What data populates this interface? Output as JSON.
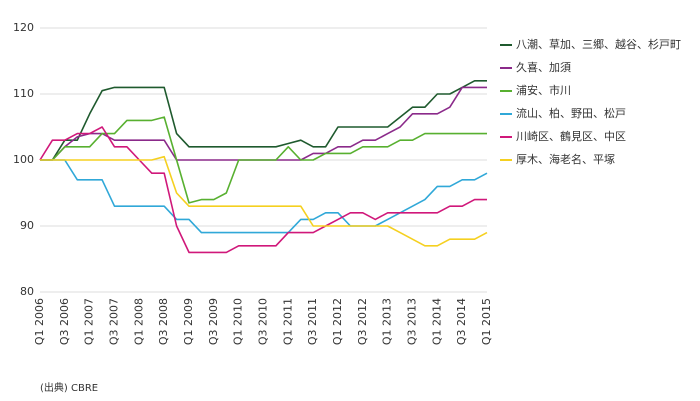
{
  "chart_data": {
    "type": "line",
    "categories": [
      "Q1 2006",
      null,
      "Q3 2006",
      null,
      "Q1 2007",
      null,
      "Q3 2007",
      null,
      "Q1 2008",
      null,
      "Q3 2008",
      null,
      "Q1 2009",
      null,
      "Q3 2009",
      null,
      "Q1 2010",
      null,
      "Q3 2010",
      null,
      "Q1 2011",
      null,
      "Q3 2011",
      null,
      "Q1 2012",
      null,
      "Q3 2012",
      null,
      "Q1 2013",
      null,
      "Q3 2013",
      null,
      "Q1 2014",
      null,
      "Q3 2014",
      null,
      "Q1 2015"
    ],
    "series": [
      {
        "name": "八潮、草加、三郷、越谷、杉戸町",
        "color": "#1f5a2e",
        "values": [
          100,
          100,
          103,
          103,
          107,
          110.5,
          111,
          111,
          111,
          111,
          111,
          104,
          102,
          102,
          102,
          102,
          102,
          102,
          102,
          102,
          102.5,
          103,
          102,
          102,
          105,
          105,
          105,
          105,
          105,
          106.5,
          108,
          108,
          110,
          110,
          111,
          112,
          112
        ]
      },
      {
        "name": "久喜、加須",
        "color": "#8b2a8a",
        "values": [
          100,
          100,
          102,
          103.5,
          104,
          104,
          103,
          103,
          103,
          103,
          103,
          100,
          100,
          100,
          100,
          100,
          100,
          100,
          100,
          100,
          100,
          100,
          101,
          101,
          102,
          102,
          103,
          103,
          104,
          105,
          107,
          107,
          107,
          108,
          111,
          111,
          111
        ]
      },
      {
        "name": "浦安、市川",
        "color": "#58b030",
        "values": [
          100,
          100,
          102,
          102,
          102,
          104,
          104,
          106,
          106,
          106,
          106.5,
          100,
          93.5,
          94,
          94,
          95,
          100,
          100,
          100,
          100,
          102,
          100,
          100,
          101,
          101,
          101,
          102,
          102,
          102,
          103,
          103,
          104,
          104,
          104,
          104,
          104,
          104
        ]
      },
      {
        "name": "流山、柏、野田、松戸",
        "color": "#30a8d8",
        "values": [
          100,
          100,
          100,
          97,
          97,
          97,
          93,
          93,
          93,
          93,
          93,
          91,
          91,
          89,
          89,
          89,
          89,
          89,
          89,
          89,
          89,
          91,
          91,
          92,
          92,
          90,
          90,
          90,
          91,
          92,
          93,
          94,
          96,
          96,
          97,
          97,
          98
        ]
      },
      {
        "name": "川崎区、鶴見区、中区",
        "color": "#d0187a",
        "values": [
          100,
          103,
          103,
          104,
          104,
          105,
          102,
          102,
          100,
          98,
          98,
          90,
          86,
          86,
          86,
          86,
          87,
          87,
          87,
          87,
          89,
          89,
          89,
          90,
          91,
          92,
          92,
          91,
          92,
          92,
          92,
          92,
          92,
          93,
          93,
          94,
          94
        ]
      },
      {
        "name": "厚木、海老名、平塚",
        "color": "#f5d020",
        "values": [
          100,
          100,
          100,
          100,
          100,
          100,
          100,
          100,
          100,
          100,
          100.5,
          95,
          93,
          93,
          93,
          93,
          93,
          93,
          93,
          93,
          93,
          93,
          90,
          90,
          90,
          90,
          90,
          90,
          90,
          89,
          88,
          87,
          87,
          88,
          88,
          88,
          89
        ]
      }
    ],
    "ylim": [
      80,
      120
    ],
    "yticks": [
      80,
      90,
      100,
      110,
      120
    ],
    "grid": true,
    "legend": "right",
    "note": "(出典) CBRE"
  }
}
